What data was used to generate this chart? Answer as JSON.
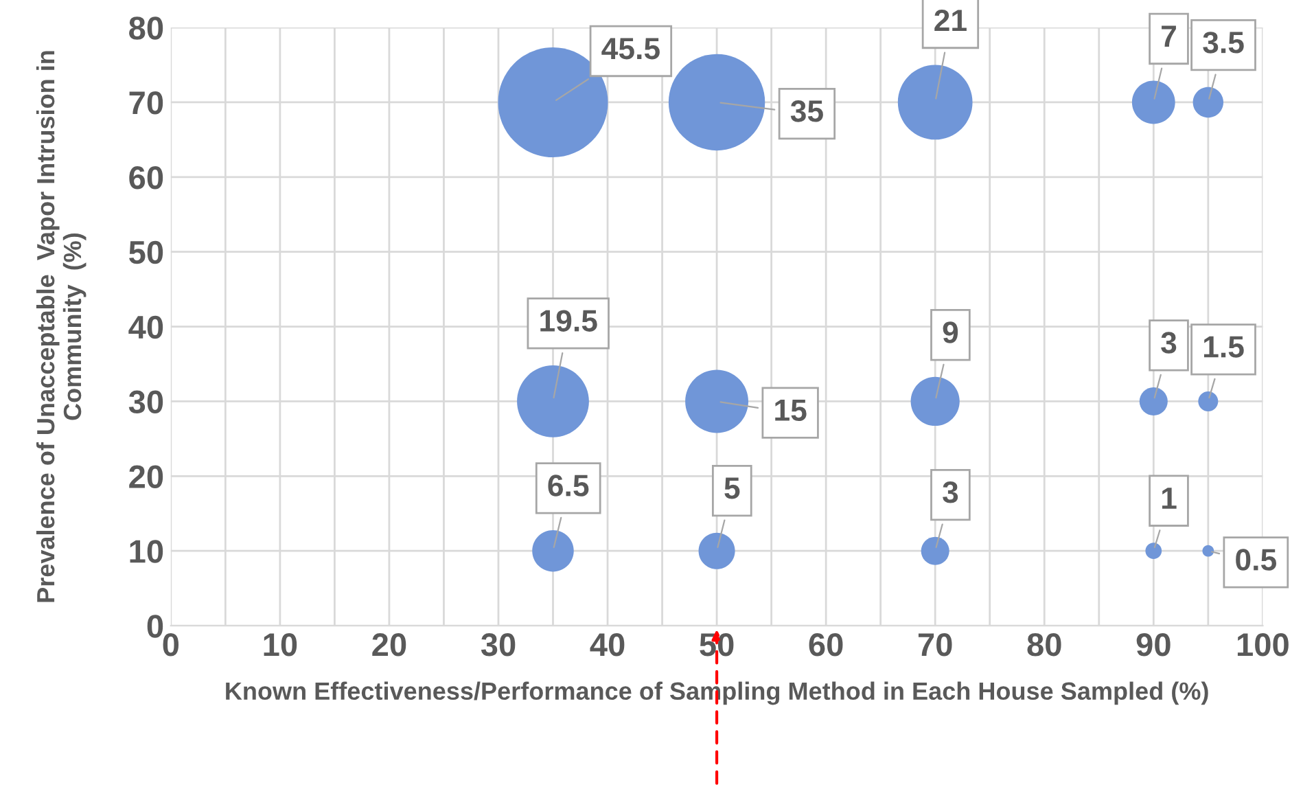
{
  "chart_data": {
    "type": "bubble",
    "xlabel": "Known Effectiveness/Performance of Sampling Method in Each House Sampled (%)",
    "ylabel": "Prevalence of Unacceptable  Vapor Intrusion in Community  (%)",
    "series": [
      {
        "color": "#7096d8",
        "x": [
          35,
          50,
          70,
          90,
          95
        ],
        "values": [
          70,
          70,
          70,
          70,
          70
        ],
        "sizes": [
          45.5,
          35,
          21,
          7,
          3.5
        ],
        "value_labels": [
          "45.5",
          "35",
          "21",
          "7",
          "3.5"
        ]
      },
      {
        "color": "#7096d8",
        "x": [
          35,
          50,
          70,
          90,
          95
        ],
        "values": [
          30,
          30,
          30,
          30,
          30
        ],
        "sizes": [
          19.5,
          15,
          9,
          3,
          1.5
        ],
        "value_labels": [
          "19.5",
          "15",
          "9",
          "3",
          "1.5"
        ]
      },
      {
        "color": "#7096d8",
        "x": [
          35,
          50,
          70,
          90,
          95
        ],
        "values": [
          10,
          10,
          10,
          10,
          10
        ],
        "sizes": [
          6.5,
          5,
          3,
          1,
          0.5
        ],
        "value_labels": [
          "6.5",
          "5",
          "3",
          "1",
          "0.5"
        ]
      }
    ],
    "xlim": [
      0,
      100
    ],
    "xticks": [
      0,
      10,
      20,
      30,
      40,
      50,
      60,
      70,
      80,
      90,
      100
    ],
    "ylim": [
      0,
      80
    ],
    "yticks": [
      0,
      10,
      20,
      30,
      40,
      50,
      60,
      70,
      80
    ],
    "grid": true,
    "legend": false
  }
}
